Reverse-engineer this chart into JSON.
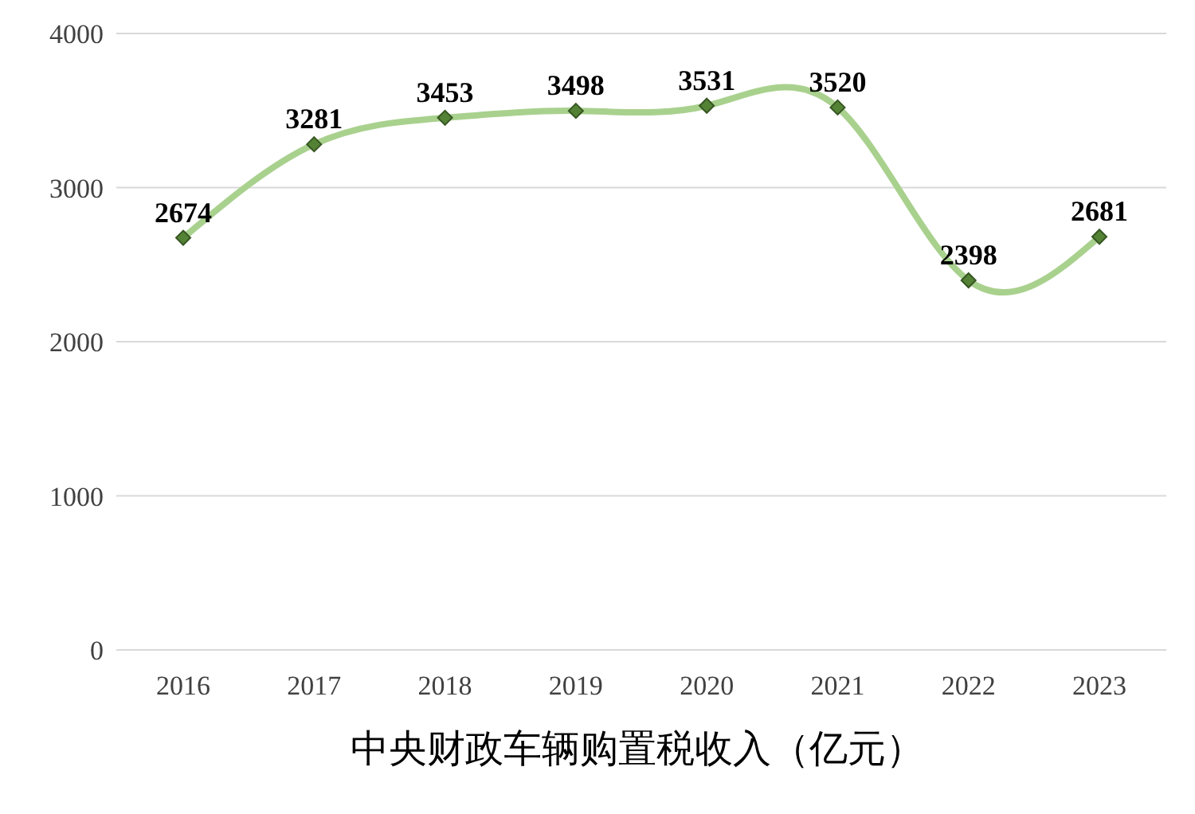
{
  "chart_data": {
    "type": "line",
    "title": "中央财政车辆购置税收入（亿元）",
    "categories": [
      "2016",
      "2017",
      "2018",
      "2019",
      "2020",
      "2021",
      "2022",
      "2023"
    ],
    "series": [
      {
        "color": "#a9d18e",
        "values": [
          2674,
          3281,
          3453,
          3498,
          3531,
          3520,
          2398,
          2681
        ]
      }
    ],
    "ylim": [
      0,
      4000
    ],
    "yticks": [
      0,
      1000,
      2000,
      3000,
      4000
    ],
    "grid": "y",
    "marker": "diamond",
    "data_labels": true,
    "line_style": "solid"
  }
}
